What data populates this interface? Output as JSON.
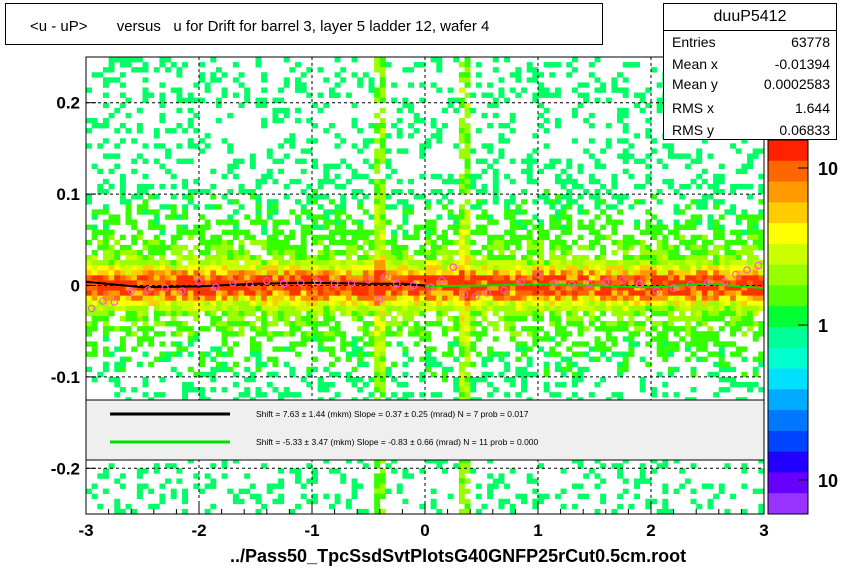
{
  "title": "<u - uP>       versus   u for Drift for barrel 3, layer 5 ladder 12, wafer 4",
  "stats": {
    "name": "duuP5412",
    "rows": [
      {
        "key": "Entries",
        "value": "63778"
      },
      {
        "key": "Mean x",
        "value": "-0.01394"
      },
      {
        "key": "Mean y",
        "value": "0.0002583"
      },
      {
        "key": "RMS x",
        "value": "1.644"
      },
      {
        "key": "RMS y",
        "value": "0.06833"
      }
    ]
  },
  "footer": "../Pass50_TpcSsdSvtPlotsG40GNFP25rCut0.5cm.root",
  "legend": {
    "entries": [
      {
        "color": "#000000",
        "text": "Shift =     7.63 ± 1.44 (mkm) Slope =     0.37 ± 0.25 (mrad)  N = 7 prob = 0.017"
      },
      {
        "color": "#00e000",
        "text": "Shift =    -5.33 ± 3.47 (mkm) Slope =    -0.83 ± 0.66 (mrad)  N = 11 prob = 0.000"
      }
    ]
  },
  "chart_data": {
    "type": "heatmap",
    "xlim": [
      -3,
      3
    ],
    "ylim": [
      -0.25,
      0.25
    ],
    "xticks": [
      "-3",
      "-2",
      "-1",
      "0",
      "1",
      "2",
      "3"
    ],
    "yticks": [
      "-0.2",
      "-0.1",
      "0",
      "0.1",
      "0.2"
    ],
    "color_scale_labels": [
      "10",
      "1",
      "10"
    ],
    "grid": true,
    "bands": [
      {
        "name": "",
        "x": [
          -3.0,
          -2.0,
          -1.0,
          -0.4,
          0.0,
          0.35,
          1.0,
          2.0,
          3.0
        ]
      }
    ],
    "series": [
      {
        "name": "",
        "color": "#000000",
        "x": [
          -3.0,
          -2.5,
          -2.0,
          -1.5,
          -1.0,
          -0.5,
          -0.2,
          0.0
        ],
        "y": [
          0.004,
          -0.002,
          -0.001,
          0.002,
          0.003,
          0.002,
          0.002,
          0.0
        ]
      },
      {
        "name": "",
        "color": "#00e000",
        "x": [
          0.0,
          0.5,
          1.0,
          1.5,
          2.0,
          2.5,
          3.0
        ],
        "y": [
          -0.001,
          0.0,
          0.001,
          0.0,
          -0.002,
          0.002,
          -0.003
        ]
      }
    ],
    "markers": {
      "x": [
        -2.95,
        -2.85,
        -2.75,
        -2.6,
        -2.45,
        -2.3,
        -2.15,
        -2.0,
        -1.85,
        -1.7,
        -1.55,
        -1.4,
        -1.25,
        -1.1,
        -0.95,
        -0.8,
        -0.65,
        -0.5,
        -0.4,
        -0.35,
        -0.25,
        -0.1,
        0.05,
        0.15,
        0.25,
        0.35,
        0.45,
        0.55,
        0.7,
        0.85,
        1.0,
        1.15,
        1.3,
        1.45,
        1.6,
        1.75,
        1.9,
        2.05,
        2.2,
        2.35,
        2.5,
        2.65,
        2.75,
        2.85,
        2.95
      ],
      "y": [
        -0.025,
        -0.017,
        -0.018,
        -0.006,
        -0.005,
        -0.003,
        -0.006,
        0.004,
        -0.002,
        0.003,
        0.001,
        0.005,
        0.002,
        0.003,
        0.004,
        0.002,
        0.003,
        0.006,
        -0.015,
        0.01,
        0.002,
        0.0,
        -0.002,
        0.006,
        0.02,
        -0.01,
        -0.012,
        -0.008,
        -0.005,
        0.004,
        0.012,
        0.003,
        0.001,
        0.002,
        0.004,
        0.006,
        0.002,
        -0.006,
        -0.003,
        0.001,
        0.003,
        0.004,
        0.012,
        0.017,
        0.022
      ]
    }
  }
}
